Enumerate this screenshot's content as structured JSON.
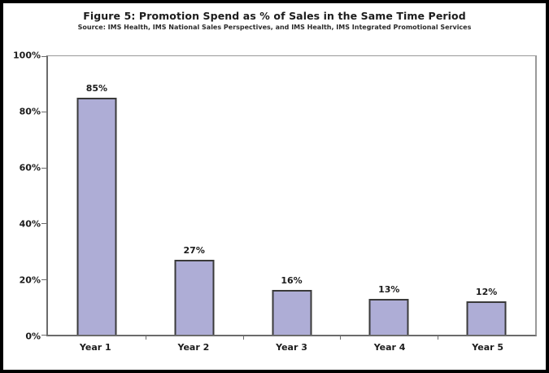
{
  "figure": {
    "title": "Figure 5: Promotion Spend as % of Sales in the Same Time Period",
    "source": "Source: IMS Health, IMS National Sales Perspectives, and IMS Health, IMS Integrated Promotional Services"
  },
  "chart_data": {
    "type": "bar",
    "title": "Figure 5: Promotion Spend as % of Sales in the Same Time Period",
    "subtitle": "Source: IMS Health, IMS National Sales Perspectives, and IMS Health, IMS Integrated Promotional Services",
    "categories": [
      "Year 1",
      "Year 2",
      "Year 3",
      "Year 4",
      "Year 5"
    ],
    "values": [
      85,
      27,
      16,
      13,
      12
    ],
    "value_labels": [
      "85%",
      "27%",
      "16%",
      "13%",
      "12%"
    ],
    "xlabel": "",
    "ylabel": "",
    "ylim": [
      0,
      100
    ],
    "ytick_values": [
      0,
      20,
      40,
      60,
      80,
      100
    ],
    "ytick_labels": [
      "0%",
      "20%",
      "40%",
      "60%",
      "80%",
      "100%"
    ],
    "grid": false,
    "legend": "none",
    "colors": {
      "bar_fill": "#aeadd6",
      "bar_border": "#3a3a3a",
      "axis_dark": "#6b6b6b",
      "axis_light": "#9a9a9a",
      "text": "#1c1c1c",
      "frame": "#000000",
      "background": "#ffffff"
    }
  }
}
